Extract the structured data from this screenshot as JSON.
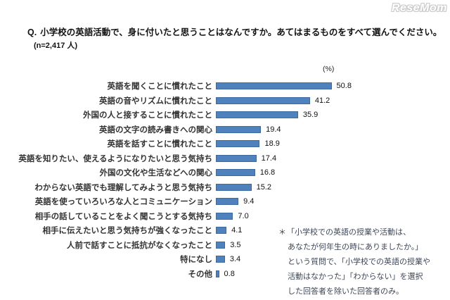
{
  "watermark": "ReseMom",
  "header": {
    "q_prefix": "Q.",
    "question": "小学校の英語活動で、身に付いたと思うことはなんですか。あてはまるものをすべて選んでください。",
    "sample_size": "(n=2,417 人)"
  },
  "chart_data": {
    "type": "bar",
    "orientation": "horizontal",
    "unit_label": "(%)",
    "grid": false,
    "legend": false,
    "xlim": [
      0,
      60
    ],
    "bar_color": "#4f81bd",
    "bar_border_color": "#3c6aa0",
    "categories": [
      "英語を聞くことに慣れたこと",
      "英語の音やリズムに慣れたこと",
      "外国の人と接することに慣れたこと",
      "英語の文字の読み書きへの関心",
      "英語を話すことに慣れたこと",
      "英語を知りたい、使えるようになりたいと思う気持ち",
      "外国の文化や生活などへの関心",
      "わからない英語でも理解してみようと思う気持ち",
      "英語を使っていろいろな人とコミュニケーション",
      "相手の話していることをよく聞こうとする気持ち",
      "相手に伝えたいと思う気持ちが強くなったこと",
      "人前で話すことに抵抗がなくなったこと",
      "特になし",
      "その他"
    ],
    "values": [
      50.8,
      41.2,
      35.9,
      19.4,
      18.9,
      17.4,
      16.8,
      15.2,
      9.4,
      7.0,
      4.1,
      3.5,
      3.4,
      0.8
    ],
    "value_labels": [
      "50.8",
      "41.2",
      "35.9",
      "19.4",
      "18.9",
      "17.4",
      "16.8",
      "15.2",
      "9.4",
      "7.0",
      "4.1",
      "3.5",
      "3.4",
      "0.8"
    ]
  },
  "footnote": {
    "marker": "＊",
    "lines": [
      "「小学校での英語の授業や活動は、",
      "あなたが何年生の時にありましたか。」",
      "という質問で、「小学校での英語の授業や",
      "活動はなかった」「わからない」を選択",
      "した回答者を除いた回答者のみ。"
    ]
  }
}
